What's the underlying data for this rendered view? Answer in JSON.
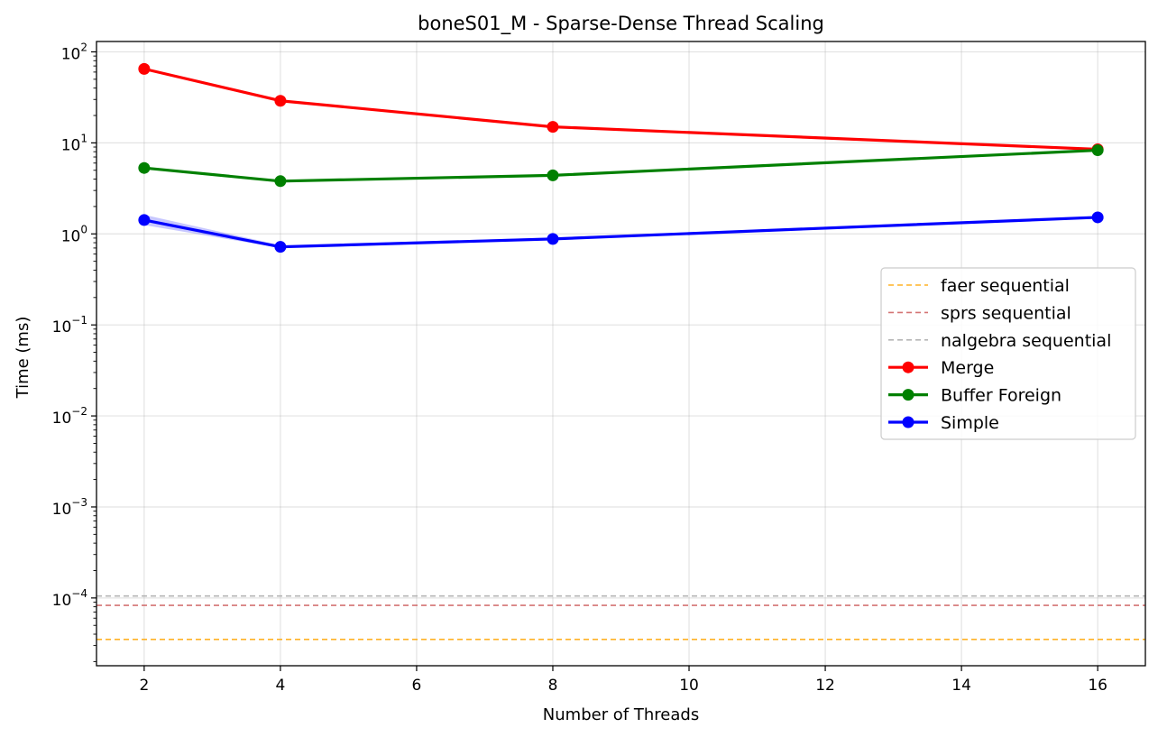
{
  "chart_data": {
    "type": "line",
    "title": "boneS01_M - Sparse-Dense Thread Scaling",
    "xlabel": "Number of Threads",
    "ylabel": "Time (ms)",
    "yscale": "log",
    "xlim": [
      1.3,
      16.7
    ],
    "ylim": [
      1.8e-05,
      130
    ],
    "grid": true,
    "legend_position": "center-right",
    "x_ticks": [
      2,
      4,
      6,
      8,
      10,
      12,
      14,
      16
    ],
    "y_ticks": [
      {
        "value": 0.0001,
        "base": "10",
        "exp": "−4"
      },
      {
        "value": 0.001,
        "base": "10",
        "exp": "−3"
      },
      {
        "value": 0.01,
        "base": "10",
        "exp": "−2"
      },
      {
        "value": 0.1,
        "base": "10",
        "exp": "−1"
      },
      {
        "value": 1,
        "base": "10",
        "exp": "0"
      },
      {
        "value": 10,
        "base": "10",
        "exp": "1"
      },
      {
        "value": 100,
        "base": "10",
        "exp": "2"
      }
    ],
    "reference_lines": [
      {
        "name": "faer sequential",
        "value": 3.5e-05,
        "color": "#ffa500"
      },
      {
        "name": "sprs sequential",
        "value": 8.3e-05,
        "color": "#cd5c5c"
      },
      {
        "name": "nalgebra sequential",
        "value": 0.000105,
        "color": "#a9a9a9"
      }
    ],
    "series": [
      {
        "name": "Merge",
        "color": "#ff0000",
        "x": [
          2,
          4,
          8,
          16
        ],
        "values": [
          65,
          29,
          15,
          8.5
        ]
      },
      {
        "name": "Buffer Foreign",
        "color": "#008000",
        "x": [
          2,
          4,
          8,
          16
        ],
        "values": [
          5.3,
          3.8,
          4.4,
          8.3
        ]
      },
      {
        "name": "Simple",
        "color": "#0000ff",
        "x": [
          2,
          4,
          8,
          16
        ],
        "values": [
          1.42,
          0.72,
          0.88,
          1.52
        ],
        "band_low": [
          1.25,
          0.7,
          0.86,
          1.48
        ],
        "band_high": [
          1.62,
          0.75,
          0.91,
          1.57
        ]
      }
    ]
  }
}
